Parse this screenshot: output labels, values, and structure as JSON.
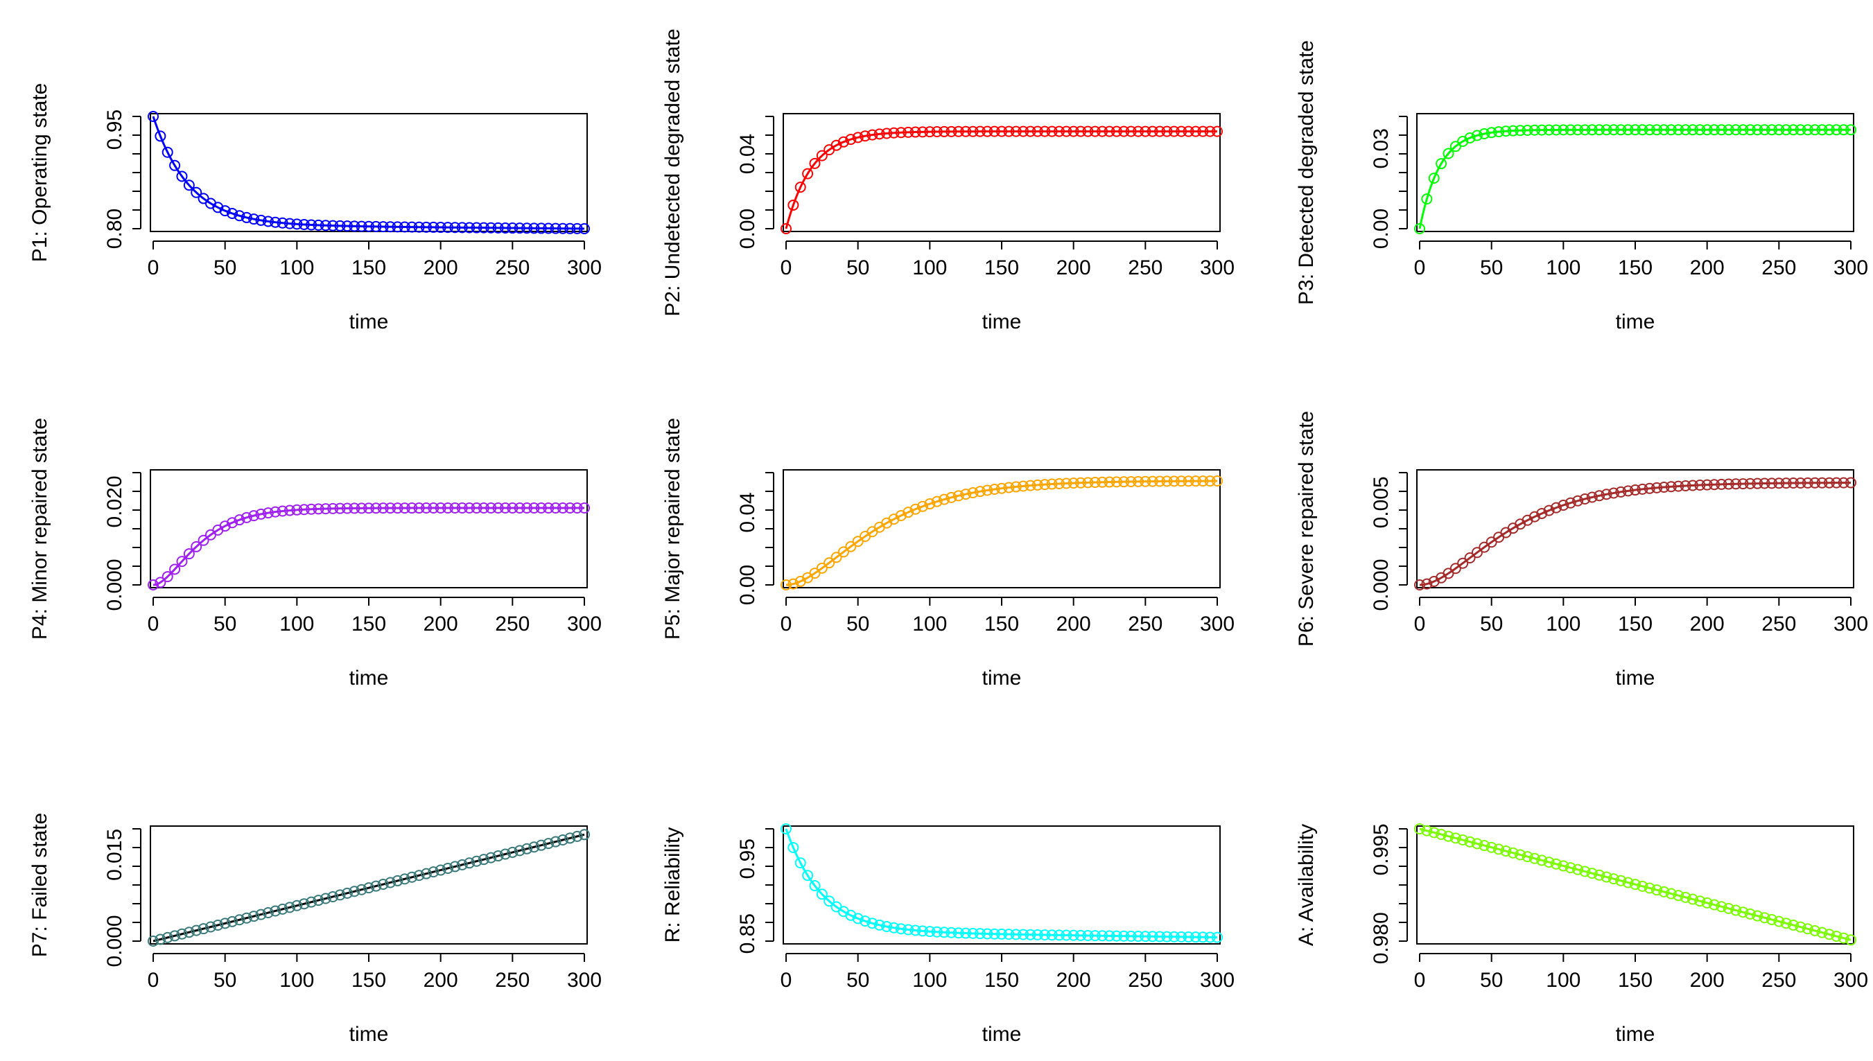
{
  "chart_data": [
    {
      "type": "line",
      "ylabel": "P1: Operating state",
      "xlabel": "time",
      "color": "#0000ff",
      "xlim": [
        0,
        300
      ],
      "ylim": [
        0.8,
        0.97
      ],
      "xticks": [
        0,
        50,
        100,
        150,
        200,
        250,
        300
      ],
      "xtick_labels": [
        "0",
        "50",
        "100",
        "150",
        "200",
        "250",
        "300"
      ],
      "yticks": [
        0.8,
        0.95
      ],
      "ytick_labels": [
        "0.80",
        "0.95"
      ],
      "ytick_minor": 7,
      "curve": {
        "start": 0.97,
        "end": 0.8,
        "tau": 25,
        "drift": 0.006,
        "shape": "exp"
      }
    },
    {
      "type": "line",
      "ylabel": "P2: Undetected degraded state",
      "xlabel": "time",
      "color": "#ff0000",
      "xlim": [
        0,
        300
      ],
      "ylim": [
        0.0,
        0.06
      ],
      "xticks": [
        0,
        50,
        100,
        150,
        200,
        250,
        300
      ],
      "xtick_labels": [
        "0",
        "50",
        "100",
        "150",
        "200",
        "250",
        "300"
      ],
      "yticks": [
        0.0,
        0.04
      ],
      "ytick_labels": [
        "0.00",
        "0.04"
      ],
      "ytick_minor": 7,
      "curve": {
        "start": 0.0,
        "end": 0.052,
        "tau": 18,
        "drift": 0,
        "shape": "exp"
      }
    },
    {
      "type": "line",
      "ylabel": "P3: Detected degraded state",
      "xlabel": "time",
      "color": "#00ff00",
      "xlim": [
        0,
        300
      ],
      "ylim": [
        0.0,
        0.042
      ],
      "xticks": [
        0,
        50,
        100,
        150,
        200,
        250,
        300
      ],
      "xtick_labels": [
        "0",
        "50",
        "100",
        "150",
        "200",
        "250",
        "300"
      ],
      "yticks": [
        0.0,
        0.03
      ],
      "ytick_labels": [
        "0.00",
        "0.03"
      ],
      "ytick_minor": 7,
      "curve": {
        "start": 0.0,
        "end": 0.037,
        "tau": 14,
        "drift": 0,
        "shape": "exp"
      }
    },
    {
      "type": "line",
      "ylabel": "P4: Minor repaired state",
      "xlabel": "time",
      "color": "#a020f0",
      "xlim": [
        0,
        300
      ],
      "ylim": [
        0.0,
        0.027
      ],
      "xticks": [
        0,
        50,
        100,
        150,
        200,
        250,
        300
      ],
      "xtick_labels": [
        "0",
        "50",
        "100",
        "150",
        "200",
        "250",
        "300"
      ],
      "yticks": [
        0.0,
        0.02
      ],
      "ytick_labels": [
        "0.000",
        "0.020"
      ],
      "ytick_minor": 7,
      "curve": {
        "start": 0.0,
        "end": 0.0185,
        "tau": 18,
        "drift": 0,
        "shape": "sig"
      }
    },
    {
      "type": "line",
      "ylabel": "P5: Major repaired state",
      "xlabel": "time",
      "color": "#ffa500",
      "xlim": [
        0,
        300
      ],
      "ylim": [
        0.0,
        0.062
      ],
      "xticks": [
        0,
        50,
        100,
        150,
        200,
        250,
        300
      ],
      "xtick_labels": [
        "0",
        "50",
        "100",
        "150",
        "200",
        "250",
        "300"
      ],
      "yticks": [
        0.0,
        0.04
      ],
      "ytick_labels": [
        "0.00",
        "0.04"
      ],
      "ytick_minor": 7,
      "curve": {
        "start": 0.0,
        "end": 0.0575,
        "tau": 35,
        "drift": 0,
        "shape": "sig"
      }
    },
    {
      "type": "line",
      "ylabel": "P6: Severe repaired state",
      "xlabel": "time",
      "color": "#a52a2a",
      "xlim": [
        0,
        300
      ],
      "ylim": [
        0.0,
        0.0068
      ],
      "xticks": [
        0,
        50,
        100,
        150,
        200,
        250,
        300
      ],
      "xtick_labels": [
        "0",
        "50",
        "100",
        "150",
        "200",
        "250",
        "300"
      ],
      "yticks": [
        0.0,
        0.005
      ],
      "ytick_labels": [
        "0.000",
        "0.005"
      ],
      "ytick_minor": 7,
      "curve": {
        "start": 0.0,
        "end": 0.0062,
        "tau": 35,
        "drift": 0,
        "shape": "sig"
      }
    },
    {
      "type": "line",
      "ylabel": "P7: Failed state",
      "xlabel": "time",
      "color": "#000000",
      "point_color": "#3a7a7a",
      "xlim": [
        0,
        300
      ],
      "ylim": [
        0.0,
        0.0195
      ],
      "xticks": [
        0,
        50,
        100,
        150,
        200,
        250,
        300
      ],
      "xtick_labels": [
        "0",
        "50",
        "100",
        "150",
        "200",
        "250",
        "300"
      ],
      "yticks": [
        0.0,
        0.015
      ],
      "ytick_labels": [
        "0.000",
        "0.015"
      ],
      "ytick_minor": 7,
      "curve": {
        "start": 0.0,
        "end": 0.0185,
        "tau": 0,
        "drift": 0,
        "shape": "lin"
      }
    },
    {
      "type": "line",
      "ylabel": "R: Reliability",
      "xlabel": "time",
      "color": "#00ffff",
      "xlim": [
        0,
        300
      ],
      "ylim": [
        0.84,
        0.99
      ],
      "xticks": [
        0,
        50,
        100,
        150,
        200,
        250,
        300
      ],
      "xtick_labels": [
        "0",
        "50",
        "100",
        "150",
        "200",
        "250",
        "300"
      ],
      "yticks": [
        0.85,
        0.95
      ],
      "ytick_labels": [
        "0.85",
        "0.95"
      ],
      "ytick_minor": 7,
      "curve": {
        "start": 0.99,
        "end": 0.845,
        "tau": 25,
        "drift": 0.008,
        "shape": "exp"
      }
    },
    {
      "type": "line",
      "ylabel": "A: Availability",
      "xlabel": "time",
      "color": "#7cfc00",
      "xlim": [
        0,
        300
      ],
      "ylim": [
        0.9795,
        0.9985
      ],
      "xticks": [
        0,
        50,
        100,
        150,
        200,
        250,
        300
      ],
      "xtick_labels": [
        "0",
        "50",
        "100",
        "150",
        "200",
        "250",
        "300"
      ],
      "yticks": [
        0.98,
        0.995
      ],
      "ytick_labels": [
        "0.980",
        "0.995"
      ],
      "ytick_minor": 7,
      "curve": {
        "start": 0.9985,
        "end": 0.9797,
        "tau": 0,
        "drift": 0,
        "shape": "lin"
      }
    }
  ]
}
